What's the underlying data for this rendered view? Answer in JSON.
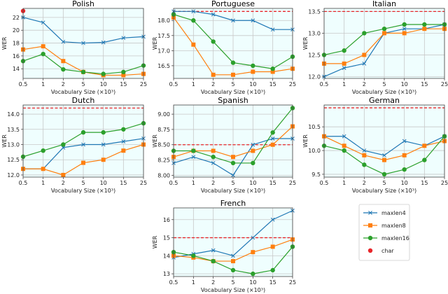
{
  "chart_data": {
    "type": "line",
    "xlabel": "Vocabulary Size (×10³)",
    "ylabel": "WER",
    "x_categories": [
      "0.5",
      "1",
      "2",
      "5",
      "10",
      "15",
      "25"
    ],
    "grid": true,
    "legend": {
      "placement": "bottom-right",
      "entries": [
        "maxlen4",
        "maxlen8",
        "maxlen16",
        "char"
      ]
    },
    "colors": {
      "maxlen4": "#1f77b4",
      "maxlen8": "#ff7f0e",
      "maxlen16": "#2ca02c",
      "char": "#e8262a",
      "background": "#effefe"
    },
    "markers": {
      "maxlen4": "x",
      "maxlen8": "square",
      "maxlen16": "circle",
      "char": "circle"
    },
    "panels": [
      {
        "title": "Polish",
        "ylim": [
          12.5,
          23.4
        ],
        "yticks": [
          "14",
          "16",
          "18",
          "20",
          "22"
        ],
        "char": 23.0,
        "char_style": "point",
        "series": [
          {
            "name": "maxlen4",
            "values": [
              22.0,
              21.2,
              18.2,
              18.0,
              18.1,
              18.8,
              19.0
            ]
          },
          {
            "name": "maxlen8",
            "values": [
              17.0,
              17.5,
              15.2,
              13.5,
              13.0,
              13.0,
              13.2
            ]
          },
          {
            "name": "maxlen16",
            "values": [
              15.2,
              16.3,
              13.9,
              13.5,
              13.2,
              13.5,
              14.5
            ]
          }
        ]
      },
      {
        "title": "Portuguese",
        "ylim": [
          16.08,
          18.4
        ],
        "yticks": [
          "16.5",
          "17.0",
          "17.5",
          "18.0"
        ],
        "char": 18.3,
        "char_style": "dashed",
        "series": [
          {
            "name": "maxlen4",
            "values": [
              18.3,
              18.3,
              18.2,
              18.0,
              18.0,
              17.7,
              17.7
            ]
          },
          {
            "name": "maxlen8",
            "values": [
              18.1,
              17.2,
              16.2,
              16.2,
              16.3,
              16.3,
              16.4
            ]
          },
          {
            "name": "maxlen16",
            "values": [
              18.2,
              18.0,
              17.3,
              16.6,
              16.5,
              16.4,
              16.8
            ]
          }
        ]
      },
      {
        "title": "Italian",
        "ylim": [
          11.96,
          13.57
        ],
        "yticks": [
          "12.0",
          "12.5",
          "13.0",
          "13.5"
        ],
        "char": 13.5,
        "char_style": "dashed",
        "series": [
          {
            "name": "maxlen4",
            "values": [
              12.0,
              12.2,
              12.3,
              13.0,
              13.1,
              13.1,
              13.2
            ]
          },
          {
            "name": "maxlen8",
            "values": [
              12.3,
              12.3,
              12.5,
              13.0,
              13.0,
              13.1,
              13.1
            ]
          },
          {
            "name": "maxlen16",
            "values": [
              12.5,
              12.6,
              13.0,
              13.1,
              13.2,
              13.2,
              13.2
            ]
          }
        ]
      },
      {
        "title": "Dutch",
        "ylim": [
          11.93,
          14.3
        ],
        "yticks": [
          "12.0",
          "12.5",
          "13.0",
          "13.5",
          "14.0"
        ],
        "char": 14.2,
        "char_style": "dashed",
        "series": [
          {
            "name": "maxlen4",
            "values": [
              12.2,
              12.2,
              12.9,
              13.0,
              13.0,
              13.1,
              13.2
            ]
          },
          {
            "name": "maxlen8",
            "values": [
              12.2,
              12.2,
              12.0,
              12.4,
              12.5,
              12.8,
              13.0
            ]
          },
          {
            "name": "maxlen16",
            "values": [
              12.6,
              12.8,
              13.0,
              13.4,
              13.4,
              13.5,
              13.7
            ]
          }
        ]
      },
      {
        "title": "Spanish",
        "ylim": [
          7.97,
          9.15
        ],
        "yticks": [
          "8.00",
          "8.25",
          "8.50",
          "8.75",
          "9.00"
        ],
        "char": 8.5,
        "char_style": "dashed",
        "series": [
          {
            "name": "maxlen4",
            "values": [
              8.2,
              8.3,
              8.2,
              8.0,
              8.5,
              8.6,
              8.6
            ]
          },
          {
            "name": "maxlen8",
            "values": [
              8.3,
              8.4,
              8.4,
              8.3,
              8.4,
              8.5,
              8.8
            ]
          },
          {
            "name": "maxlen16",
            "values": [
              8.4,
              8.4,
              8.3,
              8.2,
              8.2,
              8.7,
              9.1
            ]
          }
        ]
      },
      {
        "title": "German",
        "ylim": [
          9.44,
          10.96
        ],
        "yticks": [
          "9.5",
          "10.0",
          "10.5"
        ],
        "char": 10.9,
        "char_style": "dashed",
        "series": [
          {
            "name": "maxlen4",
            "values": [
              10.3,
              10.3,
              10.0,
              9.9,
              10.2,
              10.1,
              10.3
            ]
          },
          {
            "name": "maxlen8",
            "values": [
              10.3,
              10.1,
              9.9,
              9.8,
              9.9,
              10.1,
              10.2
            ]
          },
          {
            "name": "maxlen16",
            "values": [
              10.1,
              10.0,
              9.7,
              9.5,
              9.6,
              9.8,
              10.3
            ]
          }
        ]
      },
      {
        "title": "French",
        "ylim": [
          12.85,
          16.65
        ],
        "yticks": [
          "13",
          "14",
          "15",
          "16"
        ],
        "char": 15.0,
        "char_style": "dashed",
        "series": [
          {
            "name": "maxlen4",
            "values": [
              13.9,
              14.1,
              14.3,
              14.0,
              15.0,
              16.0,
              16.5
            ]
          },
          {
            "name": "maxlen8",
            "values": [
              14.0,
              13.9,
              13.7,
              13.7,
              14.2,
              14.5,
              14.9
            ]
          },
          {
            "name": "maxlen16",
            "values": [
              14.2,
              14.0,
              13.7,
              13.2,
              13.0,
              13.2,
              14.5
            ]
          }
        ]
      }
    ]
  }
}
